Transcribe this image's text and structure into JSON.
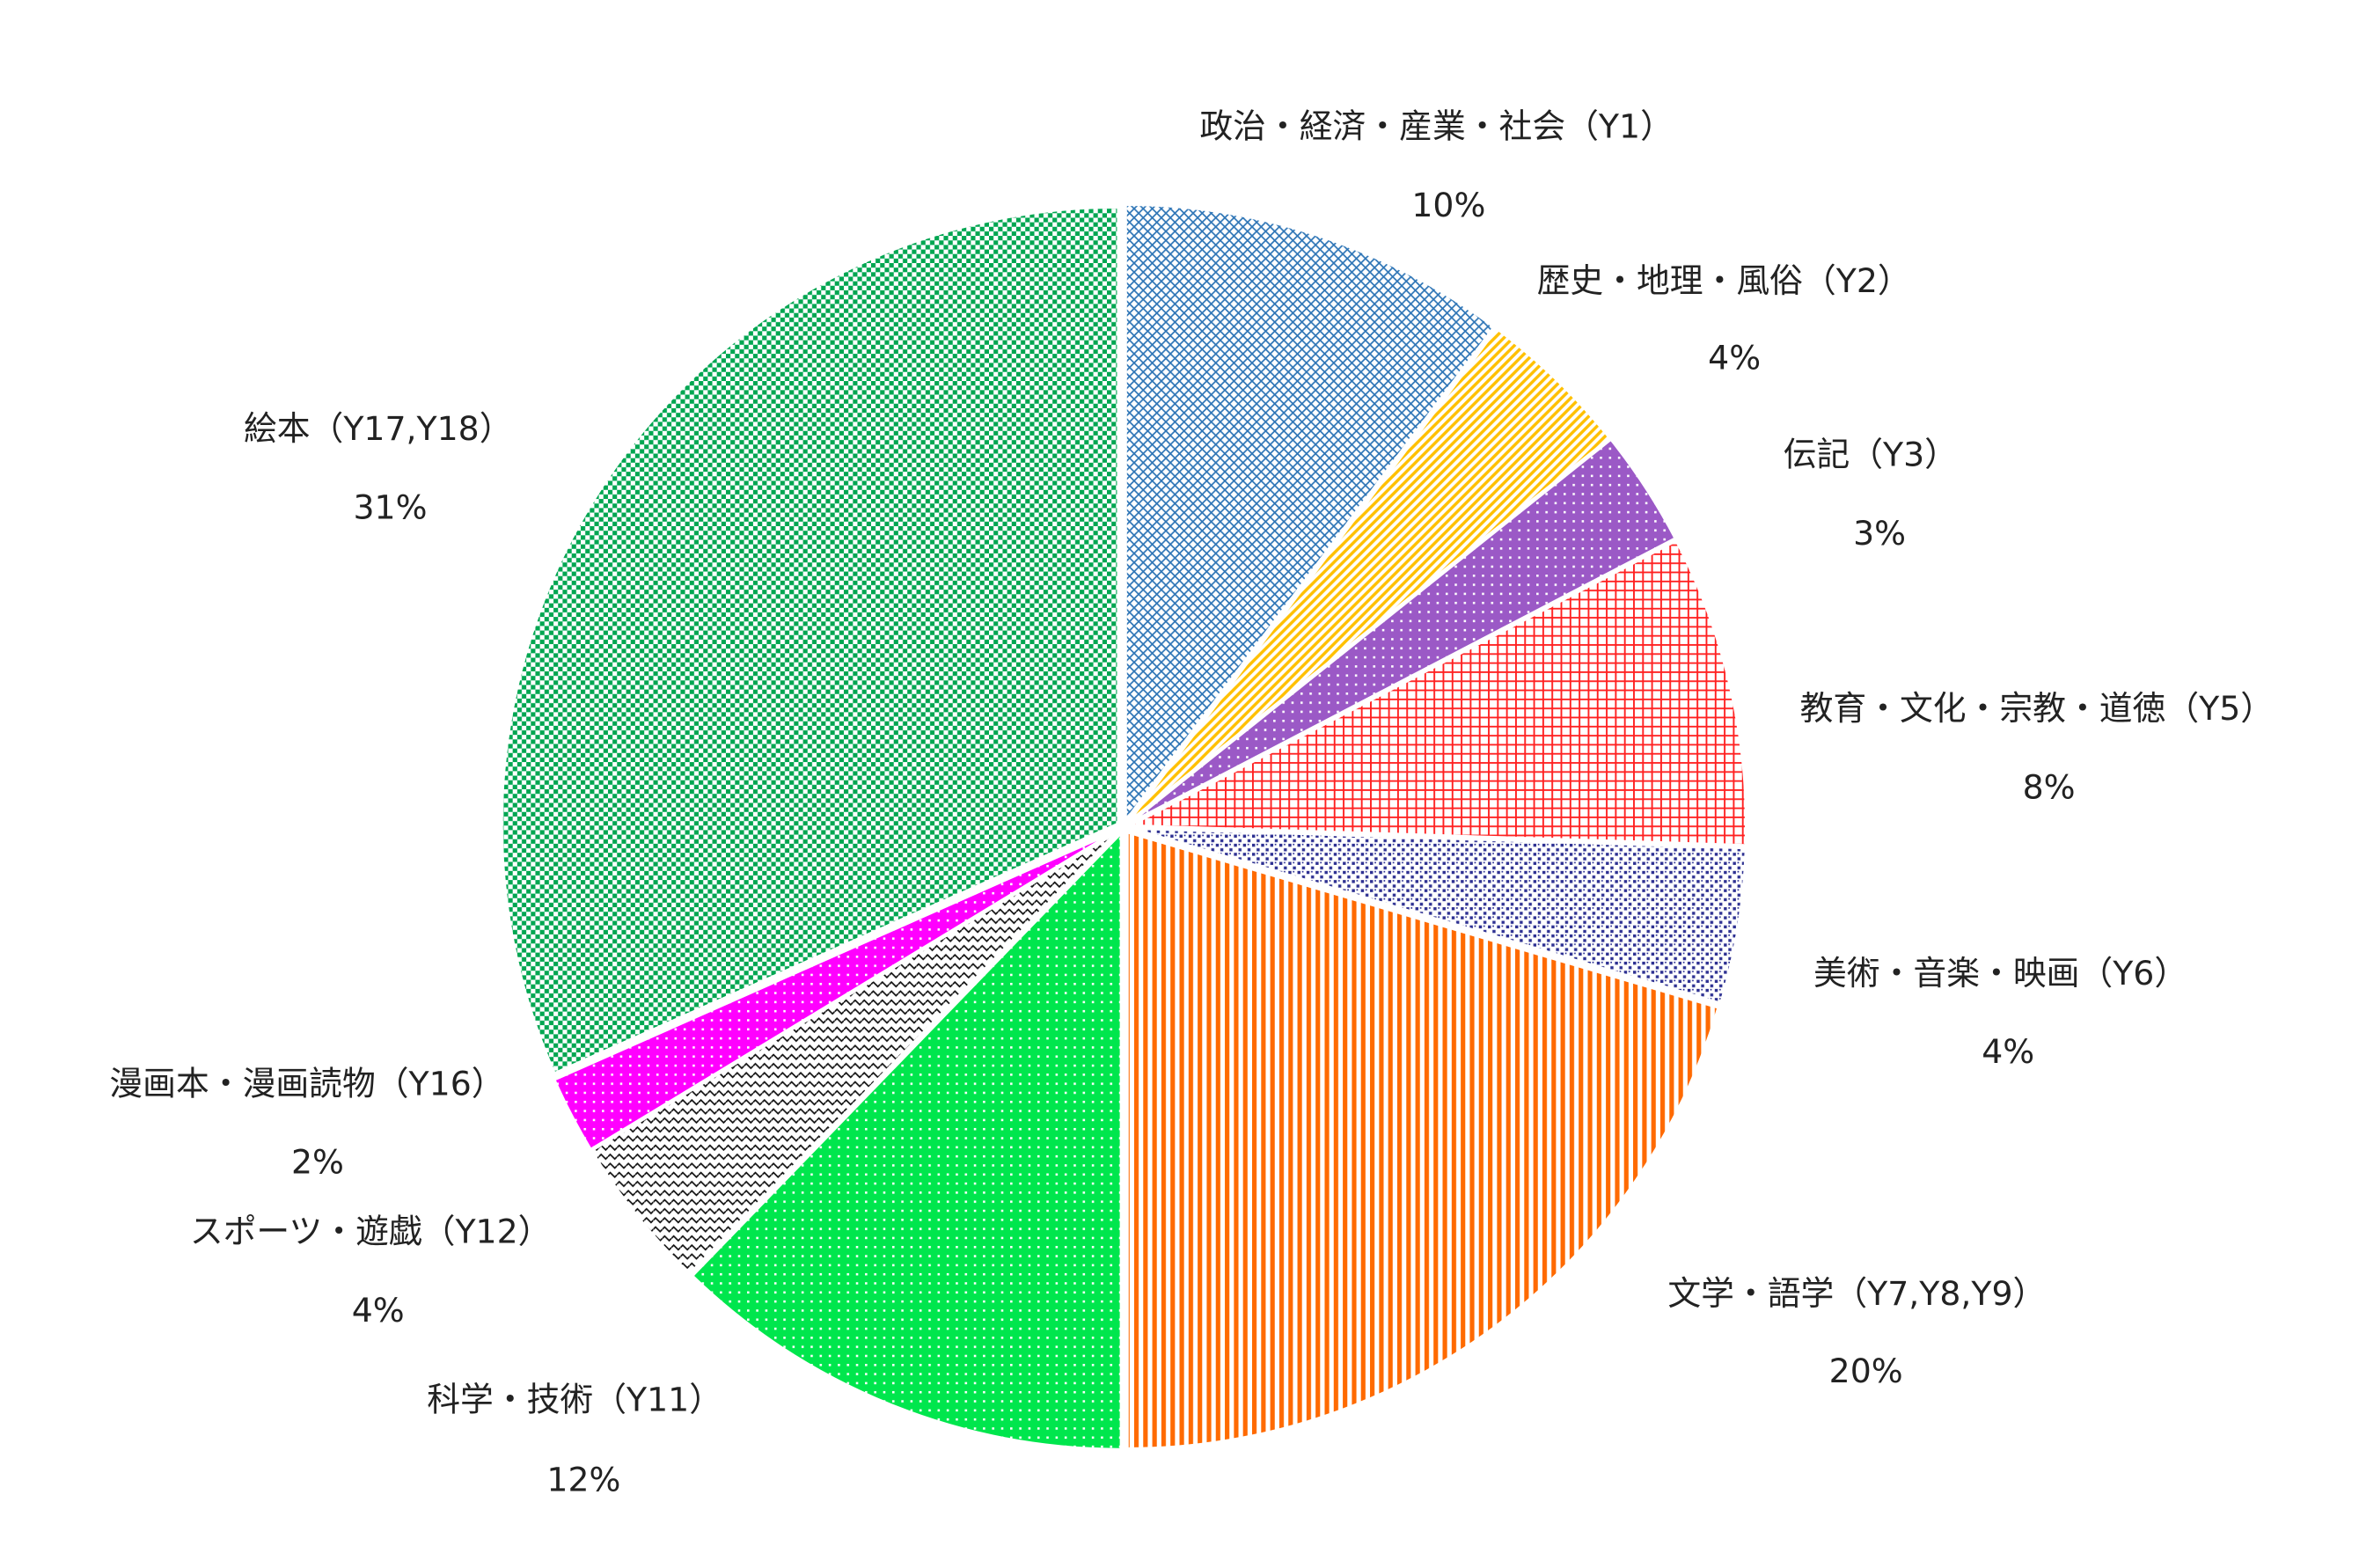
{
  "chart_data": {
    "type": "pie",
    "categories": [
      "政治・経済・産業・社会（Y1）",
      "歴史・地理・風俗（Y2）",
      "伝記（Y3）",
      "教育・文化・宗教・道徳（Y5）",
      "美術・音楽・映画（Y6）",
      "文学・語学（Y7,Y8,Y9）",
      "科学・技術（Y11）",
      "スポーツ・遊戯（Y12）",
      "漫画本・漫画読物（Y16）",
      "絵本（Y17,Y18）"
    ],
    "values": [
      10,
      4,
      3,
      8,
      4,
      20,
      12,
      4,
      2,
      31
    ],
    "value_labels": [
      "10%",
      "4%",
      "3%",
      "8%",
      "4%",
      "20%",
      "12%",
      "4%",
      "2%",
      "31%"
    ],
    "colors": [
      "#2e75b6",
      "#ffc000",
      "#9b59c6",
      "#ff2020",
      "#2e3192",
      "#ff6a00",
      "#00e64d",
      "#111111",
      "#ff00ff",
      "#00a651"
    ]
  }
}
